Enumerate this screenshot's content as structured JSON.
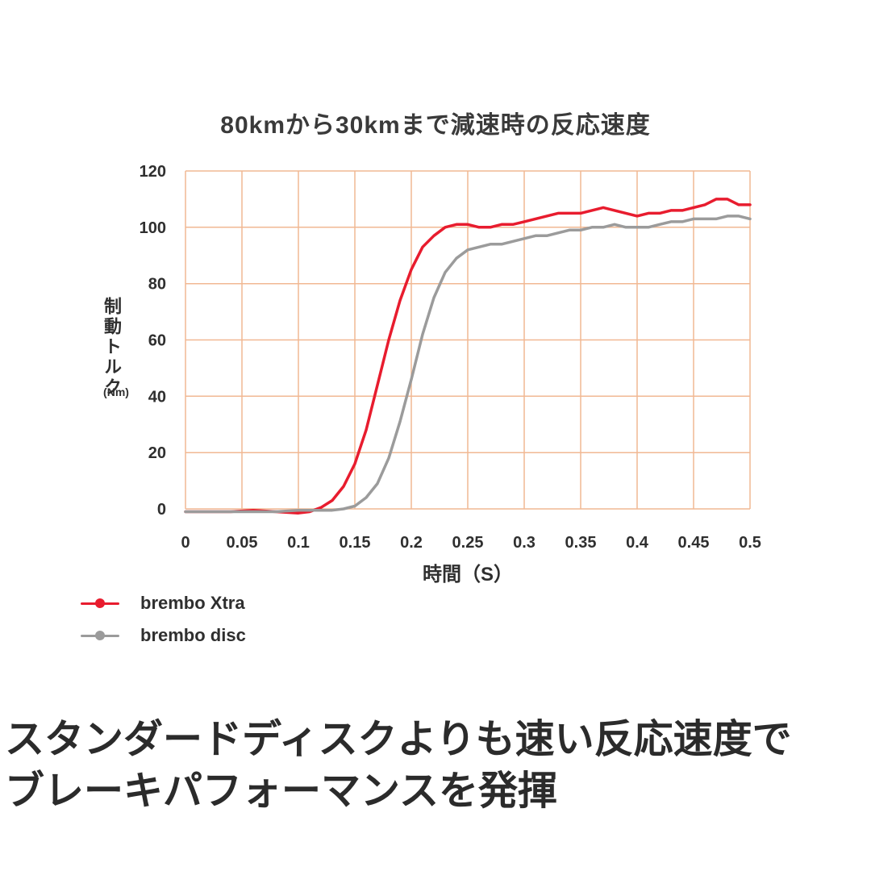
{
  "title": "80kmから30kmまで減速時の反応速度",
  "y_axis": {
    "label": "制動トルク",
    "unit": "(Nm)"
  },
  "x_axis": {
    "label": "時間（S）"
  },
  "legend": [
    {
      "label": "brembo Xtra",
      "color": "#e81c2e"
    },
    {
      "label": "brembo disc",
      "color": "#9b9b9b"
    }
  ],
  "caption": {
    "line1": "スタンダードディスクよりも速い反応速度で",
    "line2": "ブレーキパフォーマンスを発揮"
  },
  "chart_data": {
    "type": "line",
    "title": "80kmから30kmまで減速時の反応速度",
    "xlabel": "時間（S）",
    "ylabel": "制動トルク (Nm)",
    "xlim": [
      0,
      0.5
    ],
    "ylim": [
      0,
      120
    ],
    "x_ticks": [
      0,
      0.05,
      0.1,
      0.15,
      0.2,
      0.25,
      0.3,
      0.35,
      0.4,
      0.45,
      0.5
    ],
    "y_ticks": [
      0,
      20,
      40,
      60,
      80,
      100,
      120
    ],
    "grid": true,
    "grid_color": "#f1b893",
    "legend_position": "bottom-left",
    "series": [
      {
        "name": "brembo Xtra",
        "color": "#e81c2e",
        "x": [
          0,
          0.02,
          0.04,
          0.06,
          0.08,
          0.1,
          0.11,
          0.12,
          0.13,
          0.14,
          0.15,
          0.16,
          0.17,
          0.18,
          0.19,
          0.2,
          0.21,
          0.22,
          0.23,
          0.24,
          0.25,
          0.26,
          0.27,
          0.28,
          0.29,
          0.3,
          0.31,
          0.32,
          0.33,
          0.34,
          0.35,
          0.36,
          0.37,
          0.38,
          0.39,
          0.4,
          0.41,
          0.42,
          0.43,
          0.44,
          0.45,
          0.46,
          0.47,
          0.48,
          0.49,
          0.5
        ],
        "y": [
          -1,
          -1,
          -1,
          -0.5,
          -1,
          -1.5,
          -1,
          0.5,
          3,
          8,
          16,
          28,
          44,
          60,
          74,
          85,
          93,
          97,
          100,
          101,
          101,
          100,
          100,
          101,
          101,
          102,
          103,
          104,
          105,
          105,
          105,
          106,
          107,
          106,
          105,
          104,
          105,
          105,
          106,
          106,
          107,
          108,
          110,
          110,
          108,
          108
        ]
      },
      {
        "name": "brembo disc",
        "color": "#9b9b9b",
        "x": [
          0,
          0.02,
          0.04,
          0.06,
          0.08,
          0.1,
          0.11,
          0.12,
          0.13,
          0.14,
          0.15,
          0.16,
          0.17,
          0.18,
          0.19,
          0.2,
          0.21,
          0.22,
          0.23,
          0.24,
          0.25,
          0.26,
          0.27,
          0.28,
          0.29,
          0.3,
          0.31,
          0.32,
          0.33,
          0.34,
          0.35,
          0.36,
          0.37,
          0.38,
          0.39,
          0.4,
          0.41,
          0.42,
          0.43,
          0.44,
          0.45,
          0.46,
          0.47,
          0.48,
          0.49,
          0.5
        ],
        "y": [
          -1,
          -1,
          -1,
          -1,
          -1,
          -0.5,
          -0.5,
          -0.5,
          -0.5,
          0,
          1,
          4,
          9,
          18,
          31,
          46,
          62,
          75,
          84,
          89,
          92,
          93,
          94,
          94,
          95,
          96,
          97,
          97,
          98,
          99,
          99,
          100,
          100,
          101,
          100,
          100,
          100,
          101,
          102,
          102,
          103,
          103,
          103,
          104,
          104,
          103
        ]
      }
    ]
  }
}
